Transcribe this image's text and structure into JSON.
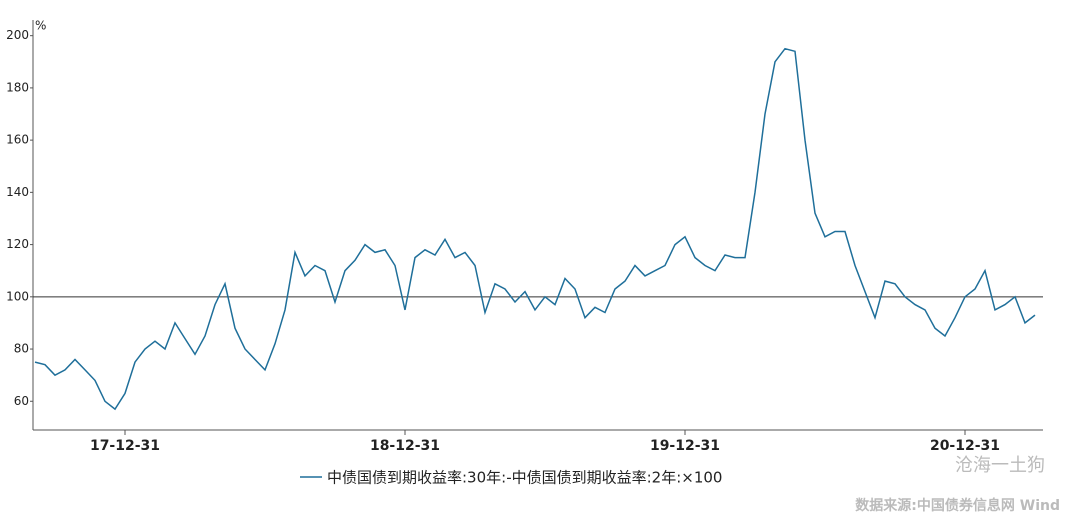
{
  "chart_data": {
    "type": "line",
    "y_unit": "%",
    "categories": [
      null,
      null,
      null,
      null,
      null,
      null,
      null,
      null,
      null,
      "17-12-31",
      null,
      null,
      null,
      null,
      null,
      null,
      null,
      null,
      null,
      null,
      null,
      null,
      null,
      null,
      null,
      null,
      null,
      null,
      null,
      null,
      null,
      null,
      null,
      null,
      null,
      null,
      null,
      "18-12-31",
      null,
      null,
      null,
      null,
      null,
      null,
      null,
      null,
      null,
      null,
      null,
      null,
      null,
      null,
      null,
      null,
      null,
      null,
      null,
      null,
      null,
      null,
      null,
      null,
      null,
      null,
      null,
      "19-12-31",
      null,
      null,
      null,
      null,
      null,
      null,
      null,
      null,
      null,
      null,
      null,
      null,
      null,
      null,
      null,
      null,
      null,
      null,
      null,
      null,
      null,
      null,
      null,
      null,
      null,
      null,
      null,
      "20-12-31",
      null,
      null,
      null,
      null,
      null,
      null,
      null
    ],
    "series": [
      {
        "name": "中债国债到期收益率:30年:-中债国债到期收益率:2年:×100",
        "color": "#1f6f9a",
        "values": [
          75,
          74,
          70,
          72,
          76,
          72,
          68,
          60,
          57,
          63,
          75,
          80,
          83,
          80,
          90,
          84,
          78,
          85,
          97,
          105,
          88,
          80,
          76,
          72,
          82,
          95,
          117,
          108,
          112,
          110,
          98,
          110,
          114,
          120,
          117,
          118,
          112,
          95,
          115,
          118,
          116,
          122,
          115,
          117,
          112,
          94,
          105,
          103,
          98,
          102,
          95,
          100,
          97,
          107,
          103,
          92,
          96,
          94,
          103,
          106,
          112,
          108,
          110,
          112,
          120,
          123,
          115,
          112,
          110,
          116,
          115,
          115,
          140,
          170,
          190,
          195,
          194,
          160,
          132,
          123,
          125,
          125,
          112,
          102,
          92,
          106,
          105,
          100,
          97,
          95,
          88,
          85,
          92,
          100,
          103,
          110,
          95,
          97,
          100,
          90,
          93
        ]
      }
    ],
    "ylim": [
      49,
      206
    ],
    "yticks": [
      60,
      80,
      100,
      120,
      140,
      160,
      180,
      200
    ],
    "reference_line": 100,
    "watermark": "沧海一土狗",
    "source": "数据来源:中国债券信息网 Wind"
  }
}
